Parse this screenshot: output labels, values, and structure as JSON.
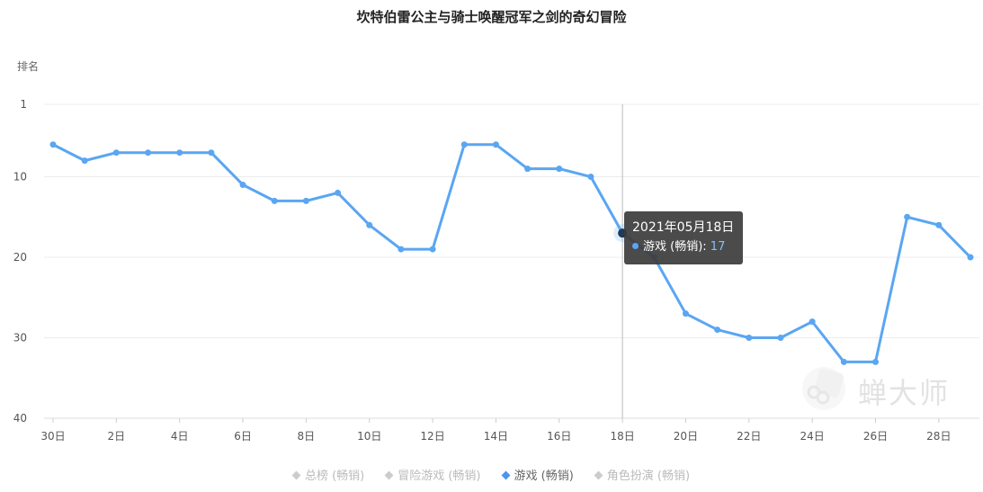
{
  "title": "坎特伯雷公主与骑士唤醒冠军之剑的奇幻冒险",
  "y_axis_label": "排名",
  "watermark": {
    "text": "蝉大师",
    "icon": "cicada-logo"
  },
  "legend": [
    {
      "label": "总榜 (畅销)",
      "active": false
    },
    {
      "label": "冒险游戏 (畅销)",
      "active": false
    },
    {
      "label": "游戏 (畅销)",
      "active": true
    },
    {
      "label": "角色扮演 (畅销)",
      "active": false
    }
  ],
  "tooltip": {
    "date": "2021年05月18日",
    "series": "游戏 (畅销):",
    "value": "17"
  },
  "colors": {
    "series": "#5aa6f2",
    "highlight_point": "#1f3a5a",
    "crosshair": "#bbbbbb"
  },
  "chart_data": {
    "type": "line",
    "title": "坎特伯雷公主与骑士唤醒冠军之剑的奇幻冒险",
    "ylabel": "排名",
    "y_inverted": true,
    "ylim": [
      1,
      40
    ],
    "y_ticks": [
      "1",
      "10",
      "20",
      "30",
      "40"
    ],
    "y_tick_values": [
      1,
      10,
      20,
      30,
      40
    ],
    "x_ticks": [
      "30日",
      "2日",
      "4日",
      "6日",
      "8日",
      "10日",
      "12日",
      "14日",
      "16日",
      "18日",
      "20日",
      "22日",
      "24日",
      "26日",
      "28日"
    ],
    "x": [
      "30日",
      "1日",
      "2日",
      "3日",
      "4日",
      "5日",
      "6日",
      "7日",
      "8日",
      "9日",
      "10日",
      "11日",
      "12日",
      "13日",
      "14日",
      "15日",
      "16日",
      "17日",
      "18日",
      "19日",
      "20日",
      "21日",
      "22日",
      "23日",
      "24日",
      "25日",
      "26日",
      "27日",
      "28日",
      "29日"
    ],
    "series": [
      {
        "name": "游戏 (畅销)",
        "values": [
          6,
          8,
          7,
          7,
          7,
          7,
          11,
          13,
          13,
          12,
          16,
          19,
          19,
          6,
          6,
          9,
          9,
          10,
          17,
          20,
          27,
          29,
          30,
          30,
          28,
          33,
          33,
          15,
          16,
          20
        ]
      }
    ],
    "highlight_index": 18,
    "grid": true,
    "legend_position": "bottom"
  }
}
